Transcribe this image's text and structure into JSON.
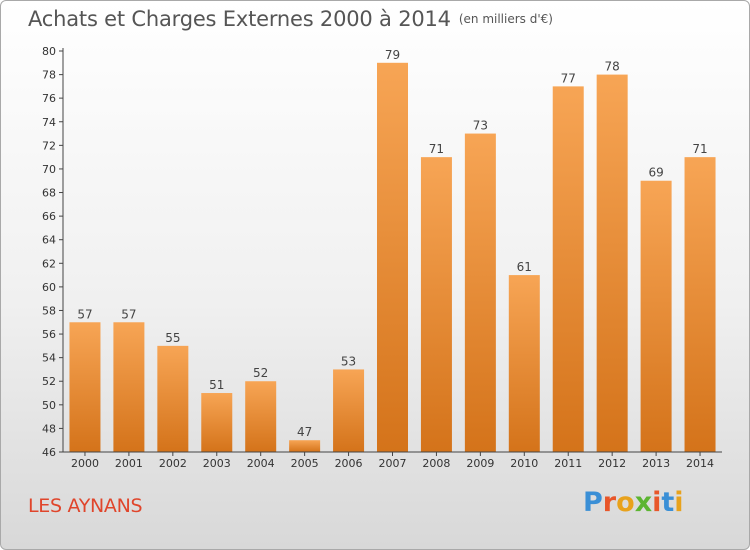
{
  "title": "Achats et Charges Externes 2000 à 2014",
  "unit_label": "(en milliers d'€)",
  "commune": "LES AYNANS",
  "logo_text": "Proxiti",
  "colors": {
    "bar_light": "#f7a555",
    "bar_dark": "#d4731a",
    "title": "#555555",
    "commune": "#e0452b",
    "logo": [
      "#3a8fd6",
      "#e8562a",
      "#e8a21c",
      "#5cb531",
      "#e8562a",
      "#3a8fd6",
      "#e8a21c"
    ]
  },
  "chart_data": {
    "type": "bar",
    "title": "Achats et Charges Externes 2000 à 2014",
    "subtitle": "(en milliers d'€)",
    "categories": [
      "2000",
      "2001",
      "2002",
      "2003",
      "2004",
      "2005",
      "2006",
      "2007",
      "2008",
      "2009",
      "2010",
      "2011",
      "2012",
      "2013",
      "2014"
    ],
    "values": [
      57,
      57,
      55,
      51,
      52,
      47,
      53,
      79,
      71,
      73,
      61,
      77,
      78,
      69,
      71
    ],
    "ylim": [
      46,
      80
    ],
    "yticks": [
      46,
      48,
      50,
      52,
      54,
      56,
      58,
      60,
      62,
      64,
      66,
      68,
      70,
      72,
      74,
      76,
      78,
      80
    ],
    "xlabel": "",
    "ylabel": "",
    "grid": false,
    "data_labels": true
  }
}
